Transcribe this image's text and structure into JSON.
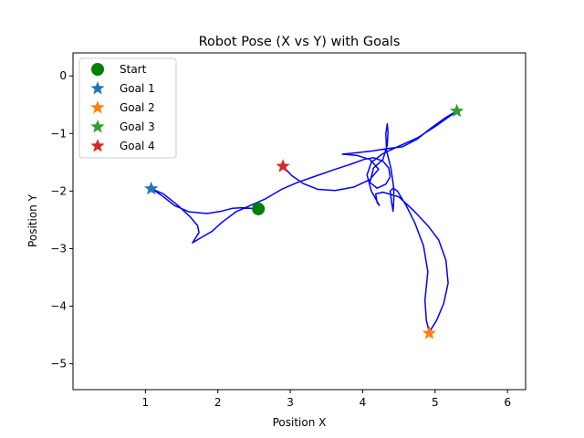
{
  "chart_data": {
    "type": "scatter",
    "title": "Robot Pose (X vs Y) with Goals",
    "xlabel": "Position X",
    "ylabel": "Position Y",
    "xlim": [
      0.0,
      6.25
    ],
    "ylim": [
      -5.45,
      0.4
    ],
    "xticks": [
      1,
      2,
      3,
      4,
      5,
      6
    ],
    "yticks": [
      0,
      -1,
      -2,
      -3,
      -4,
      -5
    ],
    "grid": false,
    "legend_position": "top-left",
    "trajectory": {
      "color": "#0000ff",
      "points": [
        [
          2.55,
          -2.31
        ],
        [
          2.35,
          -2.29
        ],
        [
          2.2,
          -2.3
        ],
        [
          2.05,
          -2.35
        ],
        [
          1.85,
          -2.39
        ],
        [
          1.6,
          -2.36
        ],
        [
          1.4,
          -2.25
        ],
        [
          1.25,
          -2.1
        ],
        [
          1.1,
          -1.97
        ],
        [
          1.25,
          -2.05
        ],
        [
          1.45,
          -2.25
        ],
        [
          1.62,
          -2.45
        ],
        [
          1.72,
          -2.6
        ],
        [
          1.74,
          -2.72
        ],
        [
          1.65,
          -2.9
        ],
        [
          1.78,
          -2.8
        ],
        [
          1.92,
          -2.7
        ],
        [
          2.05,
          -2.55
        ],
        [
          2.25,
          -2.36
        ],
        [
          2.45,
          -2.25
        ],
        [
          2.65,
          -2.14
        ],
        [
          2.88,
          -1.97
        ],
        [
          3.1,
          -1.85
        ],
        [
          3.35,
          -1.74
        ],
        [
          3.6,
          -1.63
        ],
        [
          3.82,
          -1.54
        ],
        [
          4.02,
          -1.45
        ],
        [
          4.15,
          -1.42
        ],
        [
          4.28,
          -1.48
        ],
        [
          4.36,
          -1.6
        ],
        [
          4.38,
          -1.75
        ],
        [
          4.32,
          -1.88
        ],
        [
          4.2,
          -1.95
        ],
        [
          4.1,
          -1.85
        ],
        [
          4.15,
          -1.6
        ],
        [
          4.28,
          -1.45
        ],
        [
          4.34,
          -1.2
        ],
        [
          4.35,
          -0.98
        ],
        [
          4.34,
          -0.83
        ],
        [
          4.32,
          -1.0
        ],
        [
          4.33,
          -1.3
        ],
        [
          4.39,
          -1.6
        ],
        [
          4.43,
          -1.95
        ],
        [
          4.43,
          -2.15
        ],
        [
          4.42,
          -2.35
        ],
        [
          4.4,
          -2.2
        ],
        [
          4.38,
          -2.0
        ],
        [
          4.42,
          -1.95
        ],
        [
          4.48,
          -2.0
        ],
        [
          4.6,
          -2.25
        ],
        [
          4.72,
          -2.55
        ],
        [
          4.84,
          -2.95
        ],
        [
          4.9,
          -3.4
        ],
        [
          4.86,
          -3.9
        ],
        [
          4.88,
          -4.25
        ],
        [
          4.92,
          -4.45
        ],
        [
          5.02,
          -4.25
        ],
        [
          5.12,
          -3.95
        ],
        [
          5.18,
          -3.6
        ],
        [
          5.15,
          -3.2
        ],
        [
          5.05,
          -2.85
        ],
        [
          4.9,
          -2.6
        ],
        [
          4.72,
          -2.36
        ],
        [
          4.5,
          -2.1
        ],
        [
          4.28,
          -2.02
        ],
        [
          4.18,
          -2.05
        ],
        [
          4.2,
          -2.2
        ],
        [
          4.23,
          -2.25
        ],
        [
          4.12,
          -2.0
        ],
        [
          4.06,
          -1.72
        ],
        [
          4.12,
          -1.5
        ],
        [
          4.28,
          -1.35
        ],
        [
          4.5,
          -1.22
        ],
        [
          4.75,
          -1.08
        ],
        [
          5.0,
          -0.88
        ],
        [
          5.18,
          -0.72
        ],
        [
          5.3,
          -0.61
        ],
        [
          5.15,
          -0.72
        ],
        [
          4.95,
          -0.9
        ],
        [
          4.75,
          -1.1
        ],
        [
          4.55,
          -1.23
        ],
        [
          4.35,
          -1.26
        ],
        [
          4.15,
          -1.3
        ],
        [
          3.95,
          -1.33
        ],
        [
          3.72,
          -1.36
        ],
        [
          3.92,
          -1.38
        ],
        [
          4.1,
          -1.45
        ],
        [
          4.22,
          -1.62
        ],
        [
          4.1,
          -1.8
        ],
        [
          3.88,
          -1.93
        ],
        [
          3.62,
          -1.99
        ],
        [
          3.38,
          -1.97
        ],
        [
          3.18,
          -1.87
        ],
        [
          3.02,
          -1.73
        ],
        [
          2.9,
          -1.57
        ]
      ]
    },
    "series": [
      {
        "name": "Start",
        "marker": "circle",
        "color": "#008000",
        "x": 2.56,
        "y": -2.31
      },
      {
        "name": "Goal 1",
        "marker": "star",
        "color": "#1f77b4",
        "x": 1.08,
        "y": -1.96
      },
      {
        "name": "Goal 2",
        "marker": "star",
        "color": "#ff7f0e",
        "x": 4.92,
        "y": -4.47
      },
      {
        "name": "Goal 3",
        "marker": "star",
        "color": "#2ca02c",
        "x": 5.3,
        "y": -0.61
      },
      {
        "name": "Goal 4",
        "marker": "star",
        "color": "#d62728",
        "x": 2.9,
        "y": -1.57
      }
    ]
  }
}
